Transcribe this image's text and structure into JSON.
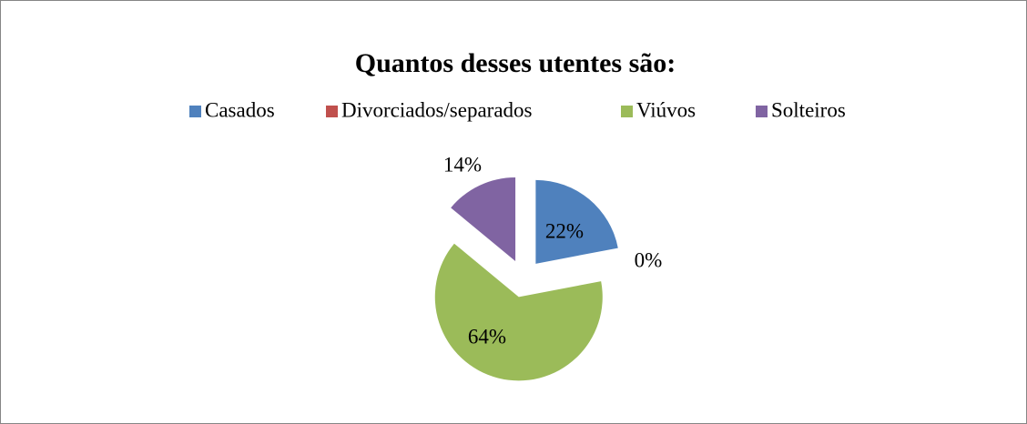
{
  "chart_data": {
    "type": "pie",
    "title": "Quantos desses utentes são:",
    "categories": [
      "Casados",
      "Divorciados/separados",
      "Viúvos",
      "Solteiros"
    ],
    "values": [
      22,
      0,
      64,
      14
    ],
    "value_labels": [
      "22%",
      "0%",
      "64%",
      "14%"
    ],
    "colors": [
      "#4f81bd",
      "#c0504d",
      "#9bbb59",
      "#8064a2"
    ],
    "legend": "top"
  }
}
